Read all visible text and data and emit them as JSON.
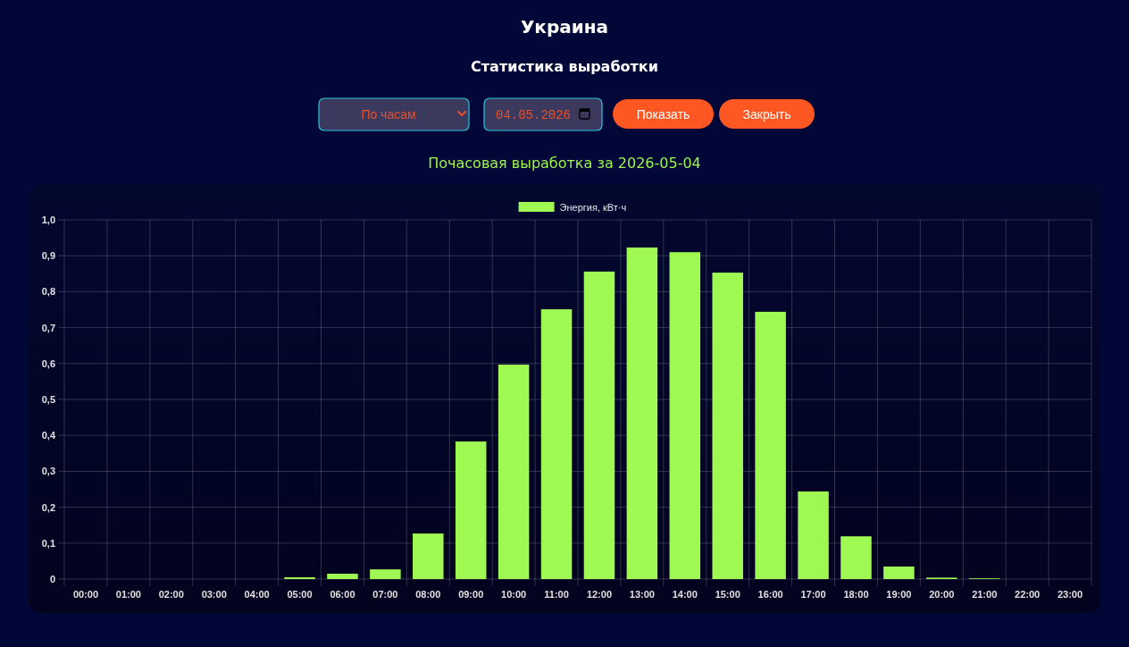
{
  "chart_data": {
    "type": "bar",
    "title": "Украина",
    "subtitle": "Статистика выработки",
    "annotations": [
      "По часам",
      "04.05.2026",
      "Показать",
      "Закрыть",
      "Почасовая выработка за 2026-05-04"
    ],
    "categories": [
      "00:00",
      "01:00",
      "02:00",
      "03:00",
      "04:00",
      "05:00",
      "06:00",
      "07:00",
      "08:00",
      "09:00",
      "10:00",
      "11:00",
      "12:00",
      "13:00",
      "14:00",
      "15:00",
      "16:00",
      "17:00",
      "18:00",
      "19:00",
      "20:00",
      "21:00",
      "22:00",
      "23:00"
    ],
    "series": [
      {
        "name": "Энергия, кВт·ч",
        "color": "#a0f852",
        "values": [
          0,
          0,
          0,
          0,
          0,
          0.005,
          0.015,
          0.027,
          0.127,
          0.383,
          0.597,
          0.751,
          0.856,
          0.923,
          0.91,
          0.853,
          0.744,
          0.244,
          0.119,
          0.035,
          0.004,
          0.002,
          0,
          0
        ]
      }
    ],
    "ylim": [
      0,
      1
    ],
    "yticks": [
      0,
      {
        "value": 0.1,
        "label": "0,1"
      },
      {
        "value": 0.2,
        "label": "0,2"
      },
      {
        "value": 0.3,
        "label": "0,3"
      },
      {
        "value": 0.4,
        "label": "0,4"
      },
      {
        "value": 0.5,
        "label": "0,5"
      },
      {
        "value": 0.6,
        "label": "0,6"
      },
      {
        "value": 0.7,
        "label": "0,7"
      },
      {
        "value": 0.8,
        "label": "0,8"
      },
      {
        "value": 0.9,
        "label": "0,9"
      },
      {
        "value": 1,
        "label": "1,0"
      }
    ],
    "grid": true,
    "legend": "top"
  }
}
